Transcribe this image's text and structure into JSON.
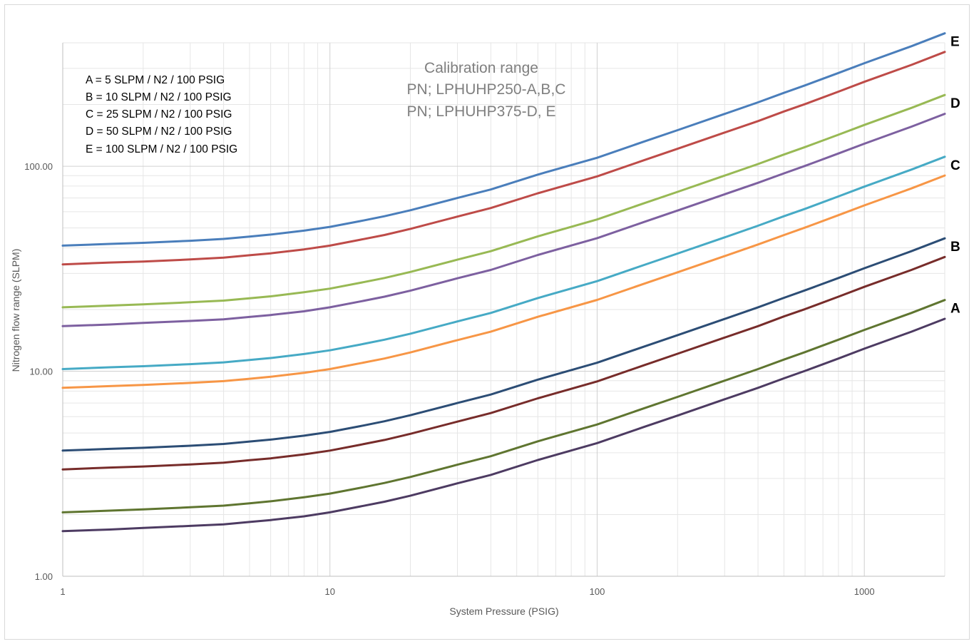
{
  "chart_data": {
    "type": "line",
    "title": "",
    "xlabel": "System Pressure (PSIG)",
    "ylabel": "Nitrogen flow range (SLPM)",
    "xscale": "log",
    "yscale": "log",
    "xlim": [
      1,
      2000
    ],
    "ylim": [
      1,
      400
    ],
    "grid": true,
    "x_ticks": [
      1,
      10,
      100,
      1000
    ],
    "x_tick_labels": [
      "1",
      "10",
      "100",
      "1000"
    ],
    "y_ticks": [
      1,
      10,
      100
    ],
    "y_tick_labels": [
      "1.00",
      "10.00",
      "100.00"
    ],
    "legend_position": "top-left",
    "legend_lines": [
      "A = 5 SLPM / N2 / 100 PSIG",
      "B = 10 SLPM / N2 / 100 PSIG",
      "C = 25 SLPM / N2 / 100 PSIG",
      "D = 50 SLPM / N2 / 100 PSIG",
      "E = 100 SLPM / N2 / 100 PSIG"
    ],
    "annotation_lines": [
      "Calibration range",
      "PN; LPHUHP250-A,B,C",
      "PN; LPHUHP375-D, E"
    ],
    "x": [
      1,
      1.5,
      2,
      3,
      4,
      5,
      6,
      8,
      10,
      13,
      16,
      20,
      30,
      40,
      60,
      100,
      150,
      200,
      300,
      400,
      500,
      600,
      800,
      1000,
      1500,
      2000
    ],
    "series": [
      {
        "color": "#4a7ebb",
        "values": [
          41.0,
          41.8,
          42.3,
          43.3,
          44.2,
          45.4,
          46.4,
          48.5,
          50.6,
          54.0,
          57.0,
          61.0,
          70.0,
          77.0,
          91.0,
          110.0,
          132.0,
          150.0,
          180.0,
          205.0,
          228.0,
          248.0,
          285.0,
          318.0,
          385.0,
          445.0
        ]
      },
      {
        "color": "#be4b48",
        "values": [
          33.2,
          33.9,
          34.3,
          35.1,
          35.8,
          36.8,
          37.6,
          39.3,
          41.0,
          43.8,
          46.2,
          49.5,
          56.8,
          62.5,
          73.8,
          89.2,
          107.0,
          121.7,
          146.0,
          166.0,
          185.0,
          201.0,
          231.0,
          258.0,
          312.0,
          361.0
        ]
      },
      {
        "color": "#98b954",
        "values": [
          20.5,
          20.9,
          21.2,
          21.7,
          22.1,
          22.7,
          23.2,
          24.3,
          25.3,
          27.0,
          28.5,
          30.5,
          35.0,
          38.5,
          45.5,
          55.0,
          66.0,
          75.0,
          90.0,
          102.5,
          114.0,
          124.0,
          142.5,
          159.0,
          192.5,
          222.5
        ]
      },
      {
        "color": "#7d60a0",
        "values": [
          16.6,
          16.9,
          17.2,
          17.6,
          17.9,
          18.4,
          18.8,
          19.6,
          20.5,
          21.9,
          23.1,
          24.7,
          28.4,
          31.2,
          36.9,
          44.6,
          53.5,
          60.8,
          73.0,
          83.0,
          92.3,
          100.4,
          115.4,
          128.8,
          155.9,
          180.2
        ]
      },
      {
        "color": "#46aac5",
        "values": [
          10.25,
          10.45,
          10.58,
          10.83,
          11.05,
          11.35,
          11.6,
          12.13,
          12.65,
          13.5,
          14.25,
          15.25,
          17.5,
          19.25,
          22.75,
          27.5,
          33.0,
          37.5,
          45.0,
          51.25,
          57.0,
          62.0,
          71.25,
          79.5,
          96.25,
          111.25
        ]
      },
      {
        "color": "#f79646",
        "values": [
          8.3,
          8.46,
          8.57,
          8.77,
          8.95,
          9.19,
          9.4,
          9.82,
          10.25,
          10.94,
          11.54,
          12.35,
          14.18,
          15.59,
          18.43,
          22.28,
          26.73,
          30.38,
          36.45,
          41.51,
          46.17,
          50.22,
          57.71,
          64.4,
          77.96,
          90.11
        ]
      },
      {
        "color": "#2c4d75",
        "values": [
          4.1,
          4.18,
          4.23,
          4.33,
          4.42,
          4.54,
          4.64,
          4.85,
          5.06,
          5.4,
          5.7,
          6.1,
          7.0,
          7.7,
          9.1,
          11.0,
          13.2,
          15.0,
          18.0,
          20.5,
          22.8,
          24.8,
          28.5,
          31.8,
          38.5,
          44.5
        ]
      },
      {
        "color": "#772c2a",
        "values": [
          3.32,
          3.39,
          3.43,
          3.51,
          3.58,
          3.68,
          3.76,
          3.93,
          4.1,
          4.38,
          4.62,
          4.95,
          5.68,
          6.25,
          7.38,
          8.92,
          10.7,
          12.17,
          14.6,
          16.6,
          18.5,
          20.1,
          23.1,
          25.8,
          31.2,
          36.1
        ]
      },
      {
        "color": "#5f7530",
        "values": [
          2.05,
          2.09,
          2.12,
          2.17,
          2.21,
          2.27,
          2.32,
          2.43,
          2.53,
          2.7,
          2.85,
          3.05,
          3.5,
          3.85,
          4.55,
          5.5,
          6.6,
          7.5,
          9.0,
          10.25,
          11.4,
          12.4,
          14.25,
          15.9,
          19.25,
          22.25
        ]
      },
      {
        "color": "#4d3b62",
        "values": [
          1.66,
          1.69,
          1.72,
          1.76,
          1.79,
          1.84,
          1.88,
          1.96,
          2.05,
          2.19,
          2.31,
          2.47,
          2.84,
          3.12,
          3.69,
          4.46,
          5.35,
          6.08,
          7.3,
          8.3,
          9.23,
          10.04,
          11.54,
          12.88,
          15.59,
          18.02
        ]
      }
    ],
    "end_labels": [
      {
        "text": "E",
        "at_series": 0
      },
      {
        "text": "D",
        "at_series": 2
      },
      {
        "text": "C",
        "at_series": 4
      },
      {
        "text": "B",
        "at_series": 6
      },
      {
        "text": "A",
        "at_series": 8
      }
    ]
  }
}
